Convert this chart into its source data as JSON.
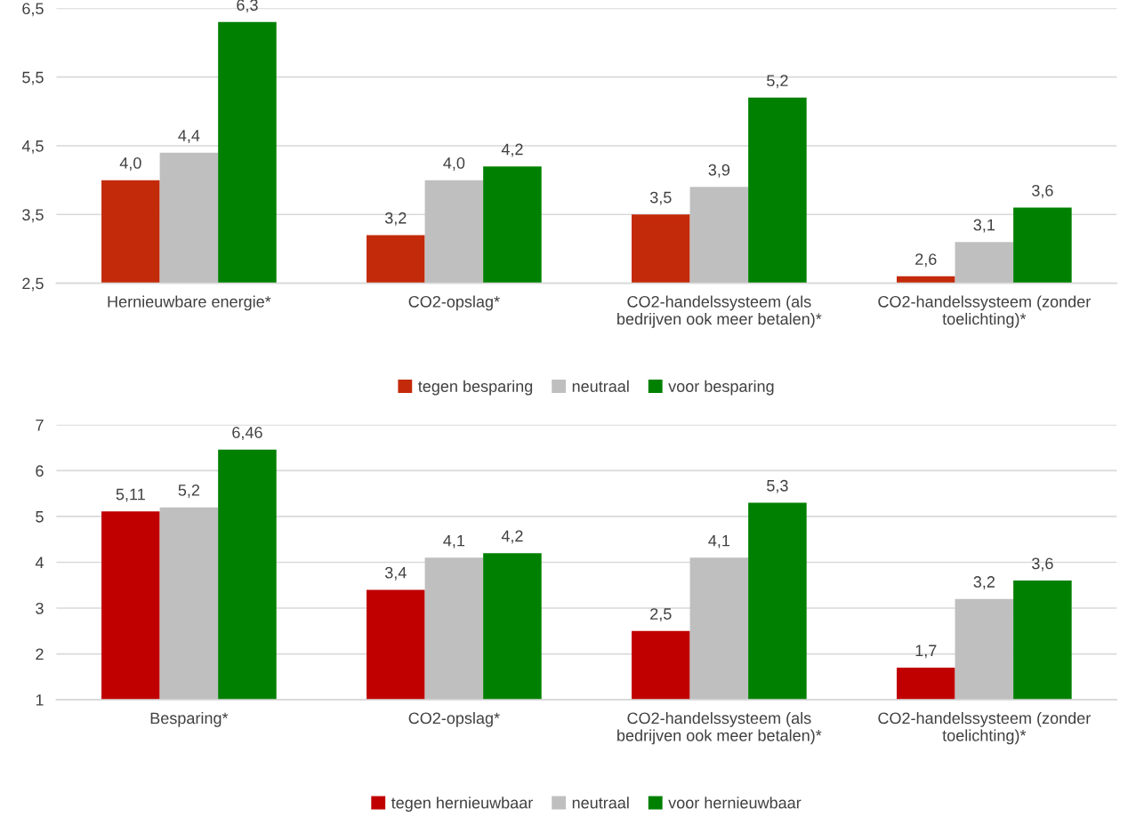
{
  "chart_data": [
    {
      "type": "bar",
      "categories": [
        "Hernieuwbare energie*",
        "CO2-opslag*",
        "CO2-handelssysteem (als\nbedrijven ook meer betalen)*",
        "CO2-handelssysteem (zonder\ntoelichting)*"
      ],
      "series": [
        {
          "name": "tegen besparing",
          "color": "#c32a0a",
          "values": [
            4.0,
            3.2,
            3.5,
            2.6
          ],
          "value_labels": [
            "4,0",
            "3,2",
            "3,5",
            "2,6"
          ]
        },
        {
          "name": "neutraal",
          "color": "#bfbfbf",
          "values": [
            4.4,
            4.0,
            3.9,
            3.1
          ],
          "value_labels": [
            "4,4",
            "4,0",
            "3,9",
            "3,1"
          ]
        },
        {
          "name": "voor besparing",
          "color": "#008000",
          "values": [
            6.3,
            4.2,
            5.2,
            3.6
          ],
          "value_labels": [
            "6,3",
            "4,2",
            "5,2",
            "3,6"
          ]
        }
      ],
      "ylim": [
        2.5,
        6.5
      ],
      "yticks": [
        {
          "value": 2.5,
          "label": "2,5"
        },
        {
          "value": 3.5,
          "label": "3,5"
        },
        {
          "value": 4.5,
          "label": "4,5"
        },
        {
          "value": 5.5,
          "label": "5,5"
        },
        {
          "value": 6.5,
          "label": "6,5"
        }
      ],
      "grid": "y",
      "legend": "bottom"
    },
    {
      "type": "bar",
      "categories": [
        "Besparing*",
        "CO2-opslag*",
        "CO2-handelssysteem (als\nbedrijven ook meer betalen)*",
        "CO2-handelssysteem (zonder\ntoelichting)*"
      ],
      "series": [
        {
          "name": "tegen hernieuwbaar",
          "color": "#c00000",
          "values": [
            5.11,
            3.4,
            2.5,
            1.7
          ],
          "value_labels": [
            "5,11",
            "3,4",
            "2,5",
            "1,7"
          ]
        },
        {
          "name": "neutraal",
          "color": "#bfbfbf",
          "values": [
            5.2,
            4.1,
            4.1,
            3.2
          ],
          "value_labels": [
            "5,2",
            "4,1",
            "4,1",
            "3,2"
          ]
        },
        {
          "name": "voor hernieuwbaar",
          "color": "#008000",
          "values": [
            6.46,
            4.2,
            5.3,
            3.6
          ],
          "value_labels": [
            "6,46",
            "4,2",
            "5,3",
            "3,6"
          ]
        }
      ],
      "ylim": [
        1,
        7
      ],
      "yticks": [
        1,
        2,
        3,
        4,
        5,
        6,
        7
      ],
      "grid": "y",
      "legend": "bottom"
    }
  ]
}
